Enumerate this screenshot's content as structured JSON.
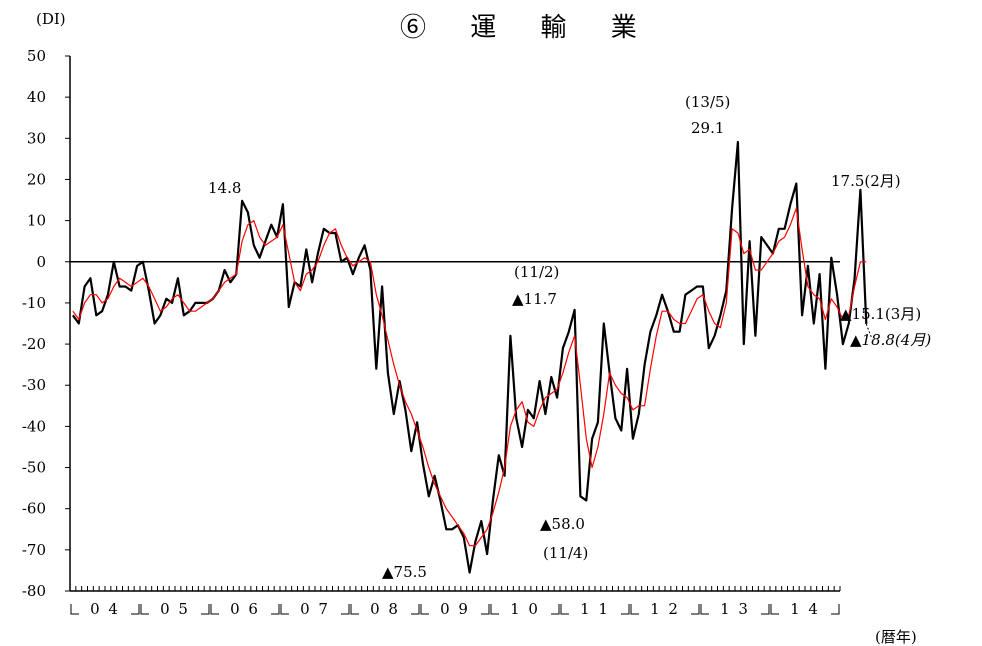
{
  "chart_data": {
    "type": "line",
    "title": "⑥ 運 輸 業",
    "ylabel": "(DI)",
    "xlabel": "(暦年)",
    "ylim": [
      -80,
      50
    ],
    "y_ticks": [
      50,
      40,
      30,
      20,
      10,
      0,
      -10,
      -20,
      -30,
      -40,
      -50,
      -60,
      -70,
      -80
    ],
    "x_year_labels": [
      "04",
      "05",
      "06",
      "07",
      "08",
      "09",
      "10",
      "11",
      "12",
      "13",
      "14"
    ],
    "x_start": "2004-01",
    "series": [
      {
        "color": "#000000",
        "values": [
          -13,
          -15,
          -6,
          -4,
          -13,
          -12,
          -8,
          0,
          -6,
          -6,
          -7,
          -1,
          0,
          -7,
          -15,
          -13,
          -9,
          -10,
          -4,
          -13,
          -12,
          -10,
          -10,
          -10,
          -9,
          -7,
          -2,
          -5,
          -3,
          14.8,
          12,
          4,
          1,
          5,
          9,
          6,
          14,
          -11,
          -5,
          -6,
          3,
          -5,
          2,
          8,
          7,
          7,
          0,
          1,
          -3,
          1,
          4,
          -2,
          -26,
          -6,
          -27,
          -37,
          -29,
          -36,
          -46,
          -39,
          -49,
          -57,
          -52,
          -58,
          -65,
          -65,
          -64,
          -67,
          -75.5,
          -68,
          -63,
          -71,
          -58,
          -47,
          -52,
          -18,
          -38,
          -45,
          -36,
          -38,
          -29,
          -37,
          -28,
          -33,
          -21,
          -17,
          -11.7,
          -57,
          -58,
          -43,
          -39,
          -15,
          -27,
          -38,
          -41,
          -26,
          -43,
          -37,
          -25,
          -17,
          -13,
          -8,
          -12,
          -17,
          -17,
          -8,
          -7,
          -6,
          -6,
          -21,
          -18,
          -13,
          -7,
          13,
          29.1,
          -20,
          5,
          -18,
          6,
          4,
          2,
          8,
          8,
          14,
          19,
          -13,
          -1,
          -15,
          -3,
          -26,
          1,
          -8,
          -20,
          -15,
          -4,
          17.5,
          -15.1
        ],
        "forecast": -18.8
      },
      {
        "color": "#ff0000",
        "values": [
          -12,
          -14,
          -10,
          -8,
          -8,
          -10,
          -9,
          -6,
          -4,
          -5,
          -6,
          -5,
          -4,
          -6,
          -9,
          -12,
          -11,
          -9,
          -8,
          -10,
          -12,
          -12,
          -11,
          -10,
          -9,
          -7,
          -5,
          -4,
          -3,
          5,
          9,
          10,
          6,
          4,
          5,
          6,
          9,
          2,
          -5,
          -7,
          -3,
          -2,
          0,
          4,
          7,
          8,
          4,
          1,
          -1,
          0,
          1,
          0,
          -8,
          -13,
          -19,
          -25,
          -30,
          -34,
          -37,
          -41,
          -45,
          -50,
          -54,
          -57,
          -60,
          -62,
          -64,
          -66,
          -69,
          -69,
          -67,
          -65,
          -61,
          -56,
          -50,
          -40,
          -36,
          -34,
          -39,
          -40,
          -36,
          -33,
          -32,
          -31,
          -27,
          -22,
          -18,
          -30,
          -43,
          -50,
          -45,
          -37,
          -27,
          -30,
          -32,
          -33,
          -36,
          -35,
          -35,
          -26,
          -18,
          -12,
          -12,
          -14,
          -15,
          -15,
          -12,
          -9,
          -8,
          -12,
          -15,
          -16,
          -10,
          8,
          7,
          2,
          3,
          -2,
          -2,
          0,
          2,
          5,
          6,
          9,
          13,
          3,
          -6,
          -8,
          -9,
          -14,
          -9,
          -11,
          -14,
          -13,
          -6,
          0,
          0
        ]
      }
    ],
    "annotations": [
      {
        "id": "a1",
        "text": "14.8"
      },
      {
        "id": "a2",
        "text": "▲75.5"
      },
      {
        "id": "a3",
        "text": "(11/2)"
      },
      {
        "id": "a4",
        "text": "▲11.7"
      },
      {
        "id": "a5",
        "text": "▲58.0"
      },
      {
        "id": "a6",
        "text": "(11/4)"
      },
      {
        "id": "a7",
        "text": "(13/5)"
      },
      {
        "id": "a8",
        "text": "29.1"
      },
      {
        "id": "a9",
        "text": "17.5(2月)"
      },
      {
        "id": "a10",
        "text": "▲15.1(3月)"
      },
      {
        "id": "a11",
        "text": "▲18.8(4月)"
      }
    ],
    "grid": false
  }
}
